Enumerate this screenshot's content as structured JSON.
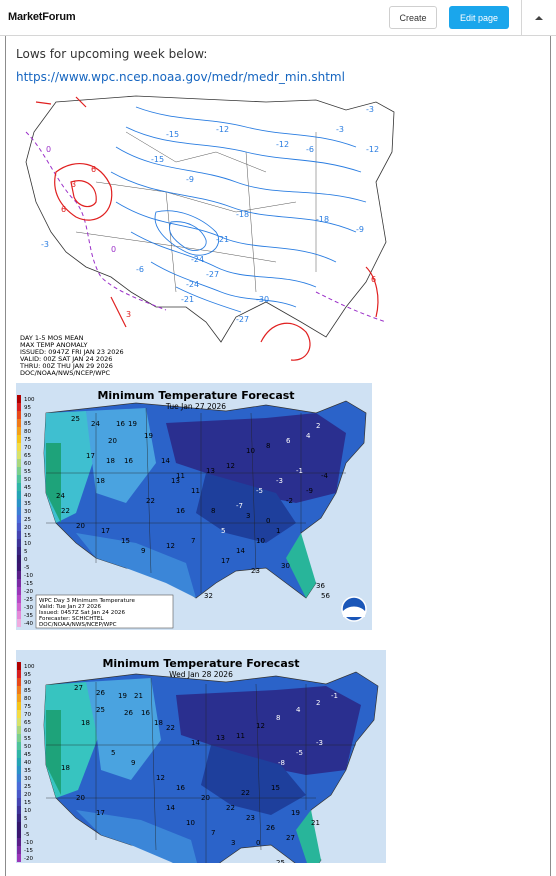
{
  "app": {
    "brand": "MarketForum",
    "create_label": "Create",
    "edit_label": "Edit page",
    "collapse_icon": "caret-up-icon"
  },
  "post": {
    "text": "Lows for upcoming week below:",
    "link": "https://www.wpc.ncep.noaa.gov/medr/medr_min.shtml"
  },
  "map1": {
    "caption_lines": [
      "DAY 1-5 MOS MEAN",
      "MAX TEMP ANOMALY",
      "ISSUED: 0947Z FRI JAN 23 2026",
      "VALID: 00Z SAT JAN 24 2026",
      "THRU: 00Z THU JAN 29 2026",
      "DOC/NOAA/NWS/NCEP/WPC"
    ],
    "contour_labels": [
      "-15",
      "-12",
      "-12",
      "-9",
      "-9",
      "-18",
      "-21",
      "-24",
      "-27",
      "-6",
      "-3",
      "0",
      "3",
      "6",
      "-6",
      "3",
      "0",
      "-3",
      "6",
      "-12",
      "-18",
      "-24",
      "-21",
      "-15",
      "-30",
      "-27",
      "-3",
      "6"
    ]
  },
  "map2": {
    "title": "Minimum Temperature Forecast",
    "date": "Tue Jan 27 2026",
    "legend_ticks": [
      "100",
      "95",
      "90",
      "85",
      "80",
      "75",
      "70",
      "65",
      "60",
      "55",
      "50",
      "45",
      "40",
      "35",
      "30",
      "25",
      "20",
      "15",
      "10",
      "5",
      "0",
      "-5",
      "-10",
      "-15",
      "-20",
      "-25",
      "-30",
      "-35",
      "-40"
    ],
    "info_lines": [
      "WPC Day 3 Minimum Temperature",
      "Valid: Tue Jan 27 2026",
      "Issued: 0457Z Sat Jan 24 2026",
      "Forecaster: SCHICHTEL",
      "DOC/NOAA/NWS/NCEP/WPC"
    ],
    "values": [
      "25",
      "24",
      "16",
      "19",
      "19",
      "20",
      "17",
      "18",
      "16",
      "14",
      "11",
      "13",
      "12",
      "10",
      "8",
      "6",
      "4",
      "2",
      "-1",
      "-3",
      "-5",
      "-7",
      "5",
      "7",
      "12",
      "9",
      "15",
      "17",
      "20",
      "22",
      "24",
      "30",
      "36",
      "56",
      "32",
      "18",
      "22",
      "16",
      "8",
      "3",
      "0",
      "-2",
      "-9",
      "-4",
      "1",
      "10",
      "14",
      "17",
      "23",
      "11",
      "13"
    ]
  },
  "map3": {
    "title": "Minimum Temperature Forecast",
    "date": "Wed Jan 28 2026",
    "legend_ticks": [
      "100",
      "95",
      "90",
      "85",
      "80",
      "75",
      "70",
      "65",
      "60",
      "55",
      "50",
      "45",
      "40",
      "35",
      "30",
      "25",
      "20",
      "15",
      "10",
      "5",
      "0",
      "-5",
      "-10",
      "-15",
      "-20"
    ],
    "values": [
      "27",
      "26",
      "19",
      "21",
      "25",
      "18",
      "26",
      "16",
      "18",
      "22",
      "14",
      "13",
      "11",
      "12",
      "8",
      "4",
      "2",
      "-1",
      "-3",
      "-5",
      "-8",
      "5",
      "9",
      "12",
      "16",
      "20",
      "22",
      "23",
      "26",
      "27",
      "30",
      "31",
      "29",
      "25",
      "17",
      "20",
      "18",
      "14",
      "10",
      "7",
      "3",
      "0",
      "19",
      "21",
      "15",
      "22"
    ]
  }
}
